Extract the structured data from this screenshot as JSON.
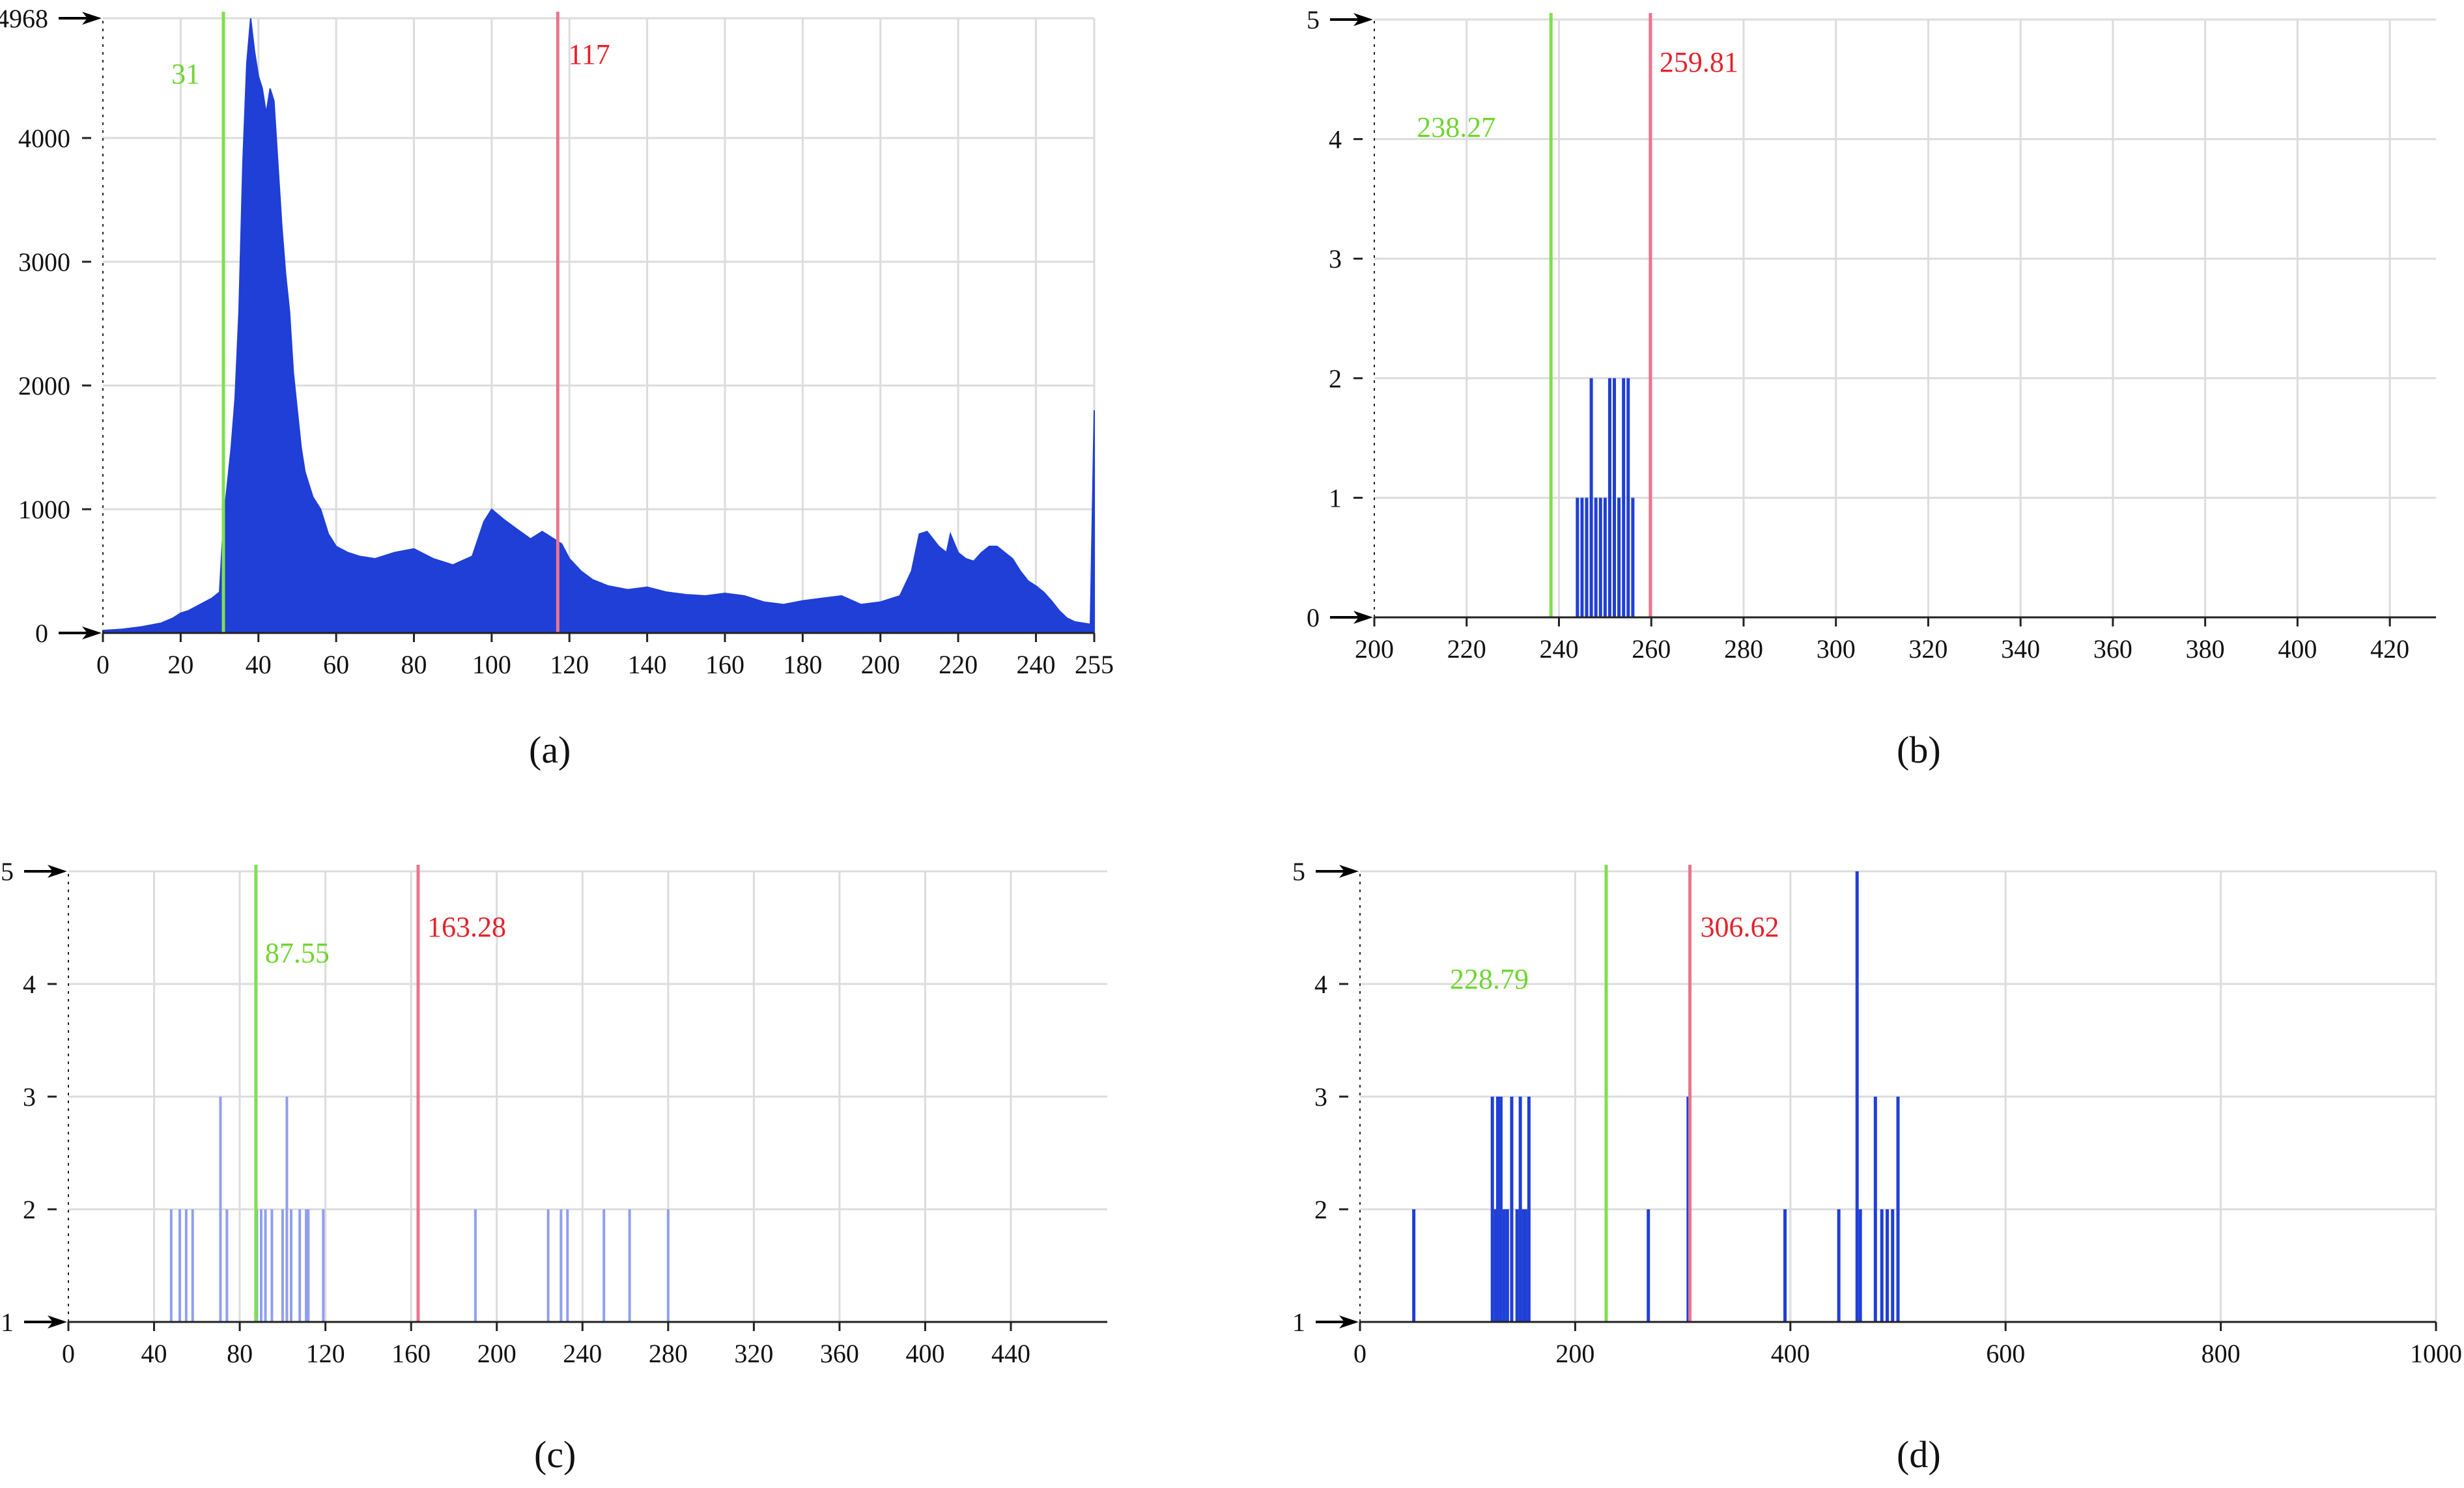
{
  "colors": {
    "bar": "#1f3fd6",
    "bar_light": "#8f9ff0",
    "grid": "#dcdcdc",
    "axis": "#222222",
    "green": "#7ee04f",
    "red": "#e8768f",
    "green_text": "#6fd531",
    "red_text": "#e3232c"
  },
  "chart_data": [
    {
      "id": "a",
      "type": "area",
      "caption": "(a)",
      "xlim": [
        0,
        255
      ],
      "ylim": [
        0,
        4968
      ],
      "xticks": [
        "0",
        "20",
        "40",
        "60",
        "80",
        "100",
        "120",
        "140",
        "160",
        "180",
        "200",
        "220",
        "240",
        "255"
      ],
      "yticks": [
        "0",
        "1000",
        "2000",
        "3000",
        "4000",
        "4968"
      ],
      "green_line": {
        "x": 31,
        "label": "31"
      },
      "red_line": {
        "x": 117,
        "label": "117"
      },
      "histogram": {
        "x": [
          0,
          5,
          10,
          15,
          18,
          20,
          22,
          25,
          28,
          30,
          31,
          32,
          33,
          34,
          35,
          36,
          37,
          38,
          39,
          40,
          41,
          42,
          43,
          44,
          45,
          46,
          47,
          48,
          49,
          50,
          51,
          52,
          53,
          54,
          55,
          56,
          58,
          60,
          63,
          66,
          70,
          75,
          80,
          85,
          90,
          95,
          98,
          100,
          103,
          106,
          110,
          113,
          116,
          118,
          120,
          123,
          126,
          130,
          135,
          140,
          145,
          150,
          155,
          160,
          165,
          170,
          175,
          180,
          185,
          190,
          195,
          200,
          205,
          208,
          210,
          212,
          213,
          215,
          217,
          218,
          220,
          222,
          224,
          226,
          228,
          230,
          232,
          234,
          236,
          238,
          240,
          242,
          244,
          246,
          248,
          250,
          252,
          254,
          255
        ],
        "y": [
          20,
          30,
          50,
          80,
          120,
          160,
          180,
          230,
          280,
          330,
          900,
          1200,
          1500,
          1900,
          2600,
          3800,
          4600,
          4968,
          4700,
          4500,
          4400,
          4200,
          4400,
          4300,
          3800,
          3300,
          2900,
          2600,
          2100,
          1800,
          1500,
          1300,
          1200,
          1100,
          1050,
          1000,
          800,
          700,
          650,
          620,
          600,
          650,
          680,
          600,
          550,
          620,
          900,
          1000,
          920,
          850,
          760,
          820,
          760,
          720,
          600,
          500,
          430,
          380,
          350,
          370,
          330,
          310,
          300,
          320,
          300,
          250,
          230,
          260,
          280,
          300,
          230,
          250,
          300,
          500,
          800,
          820,
          780,
          700,
          650,
          800,
          650,
          600,
          580,
          650,
          700,
          700,
          650,
          600,
          500,
          420,
          380,
          330,
          260,
          180,
          120,
          90,
          80,
          70,
          1800
        ]
      }
    },
    {
      "id": "b",
      "type": "bar",
      "caption": "(b)",
      "xlim": [
        200,
        430
      ],
      "ylim": [
        0,
        5
      ],
      "xticks": [
        "200",
        "220",
        "240",
        "260",
        "280",
        "300",
        "320",
        "340",
        "360",
        "380",
        "400",
        "420"
      ],
      "yticks": [
        "0",
        "1",
        "2",
        "3",
        "4",
        "5"
      ],
      "green_line": {
        "x": 238.27,
        "label": "238.27"
      },
      "red_line": {
        "x": 259.81,
        "label": "259.81"
      },
      "bars": {
        "x": [
          244,
          245,
          246,
          247,
          248,
          249,
          250,
          251,
          252,
          253,
          254,
          255,
          256
        ],
        "y": [
          1,
          1,
          1,
          2,
          1,
          1,
          1,
          2,
          2,
          1,
          2,
          2,
          1
        ]
      }
    },
    {
      "id": "c",
      "type": "bar",
      "caption": "(c)",
      "xlim": [
        0,
        485
      ],
      "ylim": [
        1,
        5
      ],
      "xticks": [
        "0",
        "40",
        "80",
        "120",
        "160",
        "200",
        "240",
        "280",
        "320",
        "360",
        "400",
        "440"
      ],
      "yticks": [
        "1",
        "2",
        "3",
        "4",
        "5"
      ],
      "green_line": {
        "x": 87.55,
        "label": "87.55"
      },
      "red_line": {
        "x": 163.28,
        "label": "163.28"
      },
      "bars": {
        "x": [
          48,
          52,
          55,
          58,
          60,
          66,
          71,
          74,
          76,
          86,
          88,
          90,
          92,
          95,
          97,
          100,
          102,
          104,
          106,
          108,
          111,
          112,
          114,
          119,
          190,
          192,
          224,
          230,
          233,
          250,
          252,
          262,
          280
        ],
        "y": [
          2,
          2,
          2,
          2,
          1,
          1,
          3,
          2,
          1,
          1,
          2,
          2,
          2,
          2,
          1,
          2,
          3,
          2,
          1,
          2,
          2,
          2,
          1,
          2,
          2,
          1,
          2,
          2,
          2,
          2,
          1,
          2,
          2
        ]
      }
    },
    {
      "id": "d",
      "type": "bar",
      "caption": "(d)",
      "xlim": [
        0,
        1000
      ],
      "ylim": [
        1,
        5
      ],
      "xticks": [
        "0",
        "200",
        "400",
        "600",
        "800",
        "1000"
      ],
      "yticks": [
        "1",
        "2",
        "3",
        "4",
        "5"
      ],
      "green_line": {
        "x": 228.79,
        "label": "228.79"
      },
      "red_line": {
        "x": 306.62,
        "label": "306.62"
      },
      "bars": {
        "x": [
          50,
          123,
          126,
          128,
          131,
          134,
          137,
          141,
          146,
          149,
          152,
          154,
          157,
          268,
          305,
          395,
          445,
          462,
          465,
          479,
          485,
          490,
          495,
          500
        ],
        "y": [
          2,
          3,
          2,
          3,
          3,
          2,
          2,
          3,
          2,
          3,
          2,
          2,
          3,
          2,
          3,
          2,
          2,
          5,
          2,
          3,
          2,
          2,
          2,
          3
        ]
      }
    }
  ]
}
